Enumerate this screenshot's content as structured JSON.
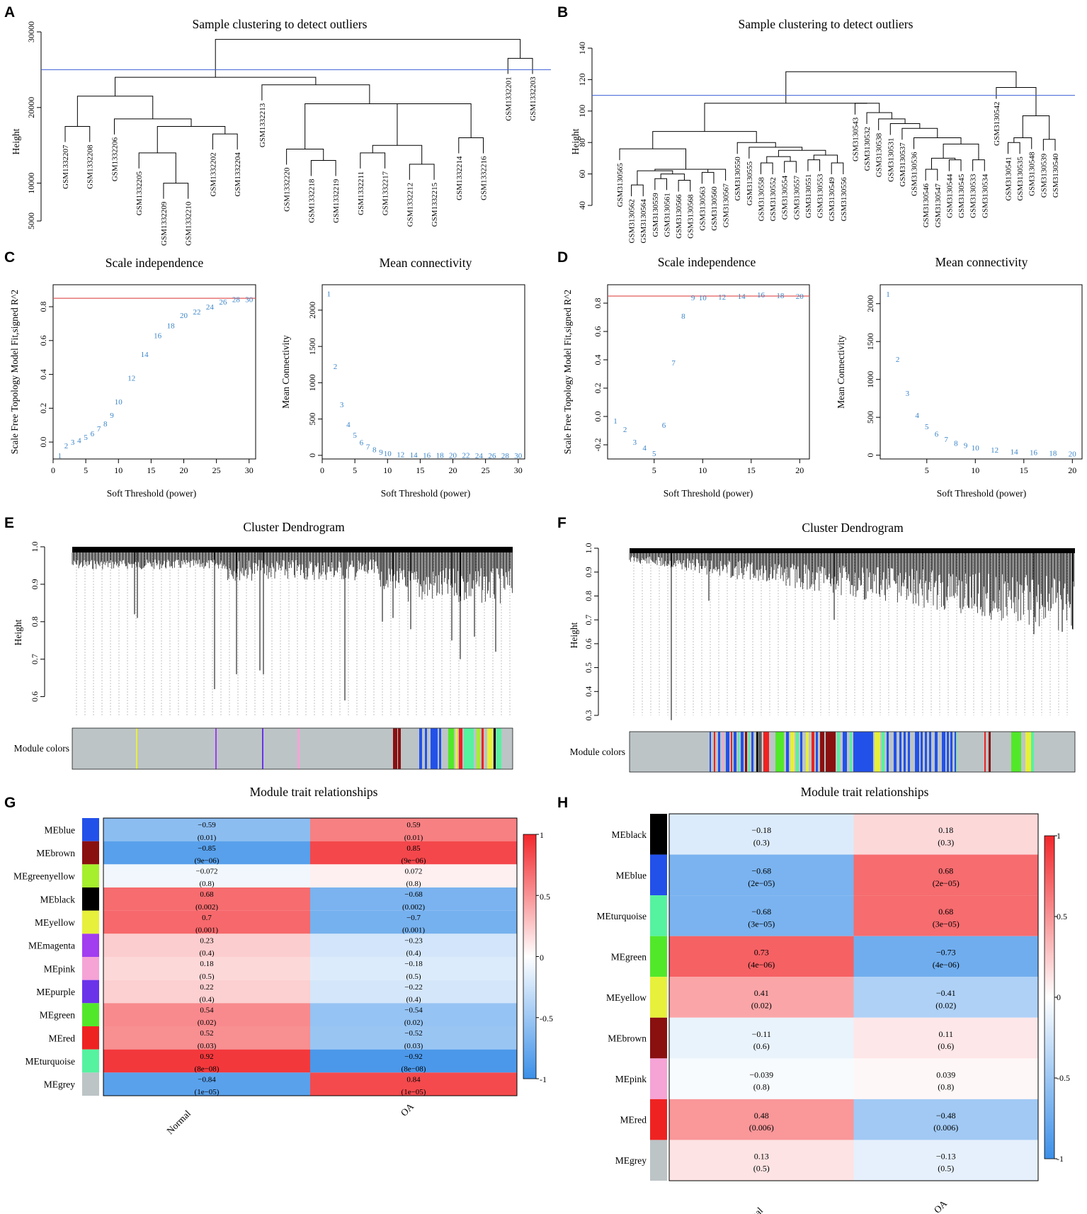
{
  "colors": {
    "blue_line": "#3b5fd6",
    "red_line": "#e35a5a",
    "pt": "#3a84c8",
    "neg": "#3b8fe8",
    "pos": "#f2272b"
  },
  "panels": {
    "A": {
      "label": "A"
    },
    "B": {
      "label": "B"
    },
    "C": {
      "label": "C"
    },
    "D": {
      "label": "D"
    },
    "E": {
      "label": "E"
    },
    "F": {
      "label": "F"
    },
    "G": {
      "label": "G"
    },
    "H": {
      "label": "H"
    }
  },
  "chart_data": [
    {
      "id": "A",
      "type": "dendrogram",
      "title": "Sample clustering to detect outliers",
      "ylabel": "Height",
      "ylim": [
        5000,
        30000
      ],
      "yticks": [
        5000,
        10000,
        20000,
        30000
      ],
      "cut_height": 25000,
      "leaves": [
        "GSM1332207",
        "GSM1332208",
        "GSM1332206",
        "GSM1332205",
        "GSM1332209",
        "GSM1332210",
        "GSM1332202",
        "GSM1332204",
        "GSM1332213",
        "GSM1332220",
        "GSM1332218",
        "GSM1332219",
        "GSM1332211",
        "GSM1332217",
        "GSM1332212",
        "GSM1332215",
        "GSM1332214",
        "GSM1332216",
        "GSM1332201",
        "GSM1332203"
      ]
    },
    {
      "id": "B",
      "type": "dendrogram",
      "title": "Sample clustering to detect outliers",
      "ylabel": "Height",
      "ylim": [
        40,
        140
      ],
      "yticks": [
        40,
        60,
        80,
        100,
        120,
        140
      ],
      "cut_height": 110,
      "leaves": [
        "GSM3130565",
        "GSM3130562",
        "GSM3130564",
        "GSM3130559",
        "GSM3130561",
        "GSM3130566",
        "GSM3130568",
        "GSM3130563",
        "GSM3130560",
        "GSM3130567",
        "GSM3130550",
        "GSM3130555",
        "GSM3130558",
        "GSM3130552",
        "GSM3130554",
        "GSM3130557",
        "GSM3130551",
        "GSM3130553",
        "GSM3130549",
        "GSM3130556",
        "GSM3130543",
        "GSM3130532",
        "GSM3130538",
        "GSM3130531",
        "GSM3130537",
        "GSM3130536",
        "GSM3130546",
        "GSM3130547",
        "GSM3130544",
        "GSM3130545",
        "GSM3130533",
        "GSM3130534",
        "GSM3130542",
        "GSM3130541",
        "GSM3130535",
        "GSM3130548",
        "GSM3130539",
        "GSM3130540"
      ]
    },
    {
      "id": "C1",
      "type": "scatter-labels",
      "title": "Scale independence",
      "xlabel": "Soft Threshold (power)",
      "ylabel": "Scale Free Topology Model Fit,signed R^2",
      "xlim": [
        0,
        31
      ],
      "ylim": [
        -0.1,
        0.93
      ],
      "xticks": [
        0,
        5,
        10,
        15,
        20,
        25,
        30
      ],
      "yticks": [
        0.0,
        0.2,
        0.4,
        0.6,
        0.8
      ],
      "hline": 0.85,
      "x": [
        1,
        2,
        3,
        4,
        5,
        6,
        7,
        8,
        9,
        10,
        12,
        14,
        16,
        18,
        20,
        22,
        24,
        26,
        28,
        30
      ],
      "y": [
        -0.08,
        -0.02,
        0.0,
        0.01,
        0.03,
        0.05,
        0.08,
        0.11,
        0.16,
        0.24,
        0.38,
        0.52,
        0.63,
        0.69,
        0.75,
        0.77,
        0.8,
        0.83,
        0.845,
        0.845
      ]
    },
    {
      "id": "C2",
      "type": "scatter-labels",
      "title": "Mean connectivity",
      "xlabel": "Soft Threshold (power)",
      "ylabel": "Mean Connectivity",
      "xlim": [
        0,
        31
      ],
      "ylim": [
        -50,
        2350
      ],
      "xticks": [
        0,
        5,
        10,
        15,
        20,
        25,
        30
      ],
      "yticks": [
        0,
        500,
        1000,
        1500,
        2000
      ],
      "x": [
        1,
        2,
        3,
        4,
        5,
        6,
        7,
        8,
        9,
        10,
        12,
        14,
        16,
        18,
        20,
        22,
        24,
        26,
        28,
        30
      ],
      "y": [
        2230,
        1230,
        700,
        430,
        280,
        180,
        120,
        80,
        50,
        30,
        15,
        8,
        5,
        4,
        3,
        2,
        1,
        1,
        1,
        0
      ]
    },
    {
      "id": "D1",
      "type": "scatter-labels",
      "title": "Scale independence",
      "xlabel": "Soft Threshold (power)",
      "ylabel": "Scale Free Topology Model Fit,signed R^2",
      "xlim": [
        0.2,
        21
      ],
      "ylim": [
        -0.3,
        0.93
      ],
      "xticks": [
        5,
        10,
        15,
        20
      ],
      "yticks": [
        -0.2,
        0.0,
        0.2,
        0.4,
        0.6,
        0.8
      ],
      "hline": 0.85,
      "x": [
        1,
        2,
        3,
        4,
        5,
        6,
        7,
        8,
        9,
        10,
        12,
        14,
        16,
        18,
        20
      ],
      "y": [
        -0.03,
        -0.09,
        -0.18,
        -0.22,
        -0.26,
        -0.06,
        0.38,
        0.71,
        0.84,
        0.84,
        0.845,
        0.85,
        0.86,
        0.855,
        0.85
      ]
    },
    {
      "id": "D2",
      "type": "scatter-labels",
      "title": "Mean connectivity",
      "xlabel": "Soft Threshold (power)",
      "ylabel": "Mean Connectivity",
      "xlim": [
        0.2,
        21
      ],
      "ylim": [
        -50,
        2250
      ],
      "xticks": [
        5,
        10,
        15,
        20
      ],
      "yticks": [
        0,
        500,
        1000,
        1500,
        2000
      ],
      "x": [
        1,
        2,
        3,
        4,
        5,
        6,
        7,
        8,
        9,
        10,
        12,
        14,
        16,
        18,
        20
      ],
      "y": [
        2130,
        1270,
        820,
        530,
        380,
        280,
        210,
        160,
        130,
        100,
        70,
        50,
        40,
        30,
        20
      ]
    },
    {
      "id": "E",
      "type": "gene-dendrogram",
      "title": "Cluster Dendrogram",
      "ylabel": "Height",
      "ylim": [
        0.55,
        1.0
      ],
      "yticks": [
        0.6,
        0.7,
        0.8,
        0.9,
        1.0
      ],
      "colorbar_label": "Module colors"
    },
    {
      "id": "F",
      "type": "gene-dendrogram",
      "title": "Cluster Dendrogram",
      "ylabel": "Height",
      "ylim": [
        0.3,
        1.0
      ],
      "yticks": [
        0.3,
        0.4,
        0.5,
        0.6,
        0.7,
        0.8,
        0.9,
        1.0
      ],
      "colorbar_label": "Module colors"
    },
    {
      "id": "G",
      "type": "heatmap",
      "title": "Module trait relationships",
      "columns": [
        "Normal",
        "OA"
      ],
      "legend_ticks": [
        "1",
        "0.5",
        "0",
        "-0.5",
        "-1"
      ],
      "rows": [
        {
          "name": "MEblue",
          "color": "#2251ea",
          "values": [
            -0.59,
            0.59
          ],
          "pvalues": [
            "(0.01)",
            "(0.01)"
          ],
          "labels": [
            "−0.59",
            "0.59"
          ]
        },
        {
          "name": "MEbrown",
          "color": "#8a1010",
          "values": [
            -0.85,
            0.85
          ],
          "pvalues": [
            "(9e−06)",
            "(9e−06)"
          ],
          "labels": [
            "−0.85",
            "0.85"
          ]
        },
        {
          "name": "MEgreenyellow",
          "color": "#a5ef2c",
          "values": [
            -0.072,
            0.072
          ],
          "pvalues": [
            "(0.8)",
            "(0.8)"
          ],
          "labels": [
            "−0.072",
            "0.072"
          ]
        },
        {
          "name": "MEblack",
          "color": "#000000",
          "values": [
            0.68,
            -0.68
          ],
          "pvalues": [
            "(0.002)",
            "(0.002)"
          ],
          "labels": [
            "0.68",
            "−0.68"
          ]
        },
        {
          "name": "MEyellow",
          "color": "#e7f03a",
          "values": [
            0.7,
            -0.7
          ],
          "pvalues": [
            "(0.001)",
            "(0.001)"
          ],
          "labels": [
            "0.7",
            "−0.7"
          ]
        },
        {
          "name": "MEmagenta",
          "color": "#a23df0",
          "values": [
            0.23,
            -0.23
          ],
          "pvalues": [
            "(0.4)",
            "(0.4)"
          ],
          "labels": [
            "0.23",
            "−0.23"
          ]
        },
        {
          "name": "MEpink",
          "color": "#f6a3d6",
          "values": [
            0.18,
            -0.18
          ],
          "pvalues": [
            "(0.5)",
            "(0.5)"
          ],
          "labels": [
            "0.18",
            "−0.18"
          ]
        },
        {
          "name": "MEpurple",
          "color": "#6a33ea",
          "values": [
            0.22,
            -0.22
          ],
          "pvalues": [
            "(0.4)",
            "(0.4)"
          ],
          "labels": [
            "0.22",
            "−0.22"
          ]
        },
        {
          "name": "MEgreen",
          "color": "#52e82a",
          "values": [
            0.54,
            -0.54
          ],
          "pvalues": [
            "(0.02)",
            "(0.02)"
          ],
          "labels": [
            "0.54",
            "−0.54"
          ]
        },
        {
          "name": "MEred",
          "color": "#ef2222",
          "values": [
            0.52,
            -0.52
          ],
          "pvalues": [
            "(0.03)",
            "(0.03)"
          ],
          "labels": [
            "0.52",
            "−0.52"
          ]
        },
        {
          "name": "MEturquoise",
          "color": "#55f2a0",
          "values": [
            0.92,
            -0.92
          ],
          "pvalues": [
            "(8e−08)",
            "(8e−08)"
          ],
          "labels": [
            "0.92",
            "−0.92"
          ]
        },
        {
          "name": "MEgrey",
          "color": "#bcc4c6",
          "values": [
            -0.84,
            0.84
          ],
          "pvalues": [
            "(1e−05)",
            "(1e−05)"
          ],
          "labels": [
            "−0.84",
            "0.84"
          ]
        }
      ]
    },
    {
      "id": "H",
      "type": "heatmap",
      "title": "Module trait relationships",
      "columns": [
        "Normal",
        "OA"
      ],
      "legend_ticks": [
        "1",
        "0.5",
        "0",
        "-0.5",
        "-1"
      ],
      "rows": [
        {
          "name": "MEblack",
          "color": "#000000",
          "values": [
            -0.18,
            0.18
          ],
          "pvalues": [
            "(0.3)",
            "(0.3)"
          ],
          "labels": [
            "−0.18",
            "0.18"
          ]
        },
        {
          "name": "MEblue",
          "color": "#2251ea",
          "values": [
            -0.68,
            0.68
          ],
          "pvalues": [
            "(2e−05)",
            "(2e−05)"
          ],
          "labels": [
            "−0.68",
            "0.68"
          ]
        },
        {
          "name": "MEturquoise",
          "color": "#55f2a0",
          "values": [
            -0.68,
            0.68
          ],
          "pvalues": [
            "(3e−05)",
            "(3e−05)"
          ],
          "labels": [
            "−0.68",
            "0.68"
          ]
        },
        {
          "name": "MEgreen",
          "color": "#52e82a",
          "values": [
            0.73,
            -0.73
          ],
          "pvalues": [
            "(4e−06)",
            "(4e−06)"
          ],
          "labels": [
            "0.73",
            "−0.73"
          ]
        },
        {
          "name": "MEyellow",
          "color": "#e7f03a",
          "values": [
            0.41,
            -0.41
          ],
          "pvalues": [
            "(0.02)",
            "(0.02)"
          ],
          "labels": [
            "0.41",
            "−0.41"
          ]
        },
        {
          "name": "MEbrown",
          "color": "#8a1010",
          "values": [
            -0.11,
            0.11
          ],
          "pvalues": [
            "(0.6)",
            "(0.6)"
          ],
          "labels": [
            "−0.11",
            "0.11"
          ]
        },
        {
          "name": "MEpink",
          "color": "#f6a3d6",
          "values": [
            -0.039,
            0.039
          ],
          "pvalues": [
            "(0.8)",
            "(0.8)"
          ],
          "labels": [
            "−0.039",
            "0.039"
          ]
        },
        {
          "name": "MEred",
          "color": "#ef2222",
          "values": [
            0.48,
            -0.48
          ],
          "pvalues": [
            "(0.006)",
            "(0.006)"
          ],
          "labels": [
            "0.48",
            "−0.48"
          ]
        },
        {
          "name": "MEgrey",
          "color": "#bcc4c6",
          "values": [
            0.13,
            -0.13
          ],
          "pvalues": [
            "(0.5)",
            "(0.5)"
          ],
          "labels": [
            "0.13",
            "−0.13"
          ]
        }
      ]
    }
  ]
}
